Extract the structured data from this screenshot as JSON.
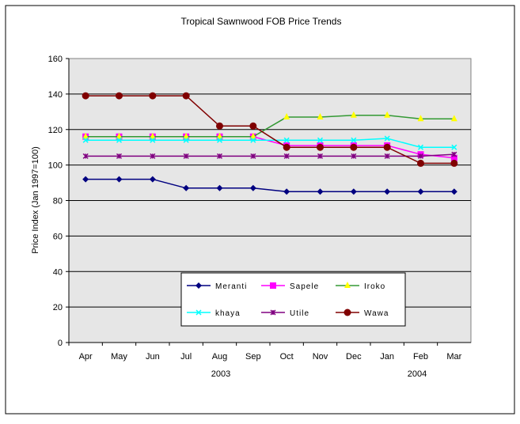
{
  "chart_data": {
    "type": "line",
    "title": "Tropical Sawnwood FOB Price Trends",
    "ylabel": "Price Index (Jan 1997=100)",
    "xlabel": "",
    "categories": [
      "Apr",
      "May",
      "Jun",
      "Jul",
      "Aug",
      "Sep",
      "Oct",
      "Nov",
      "Dec",
      "Jan",
      "Feb",
      "Mar"
    ],
    "year_labels": [
      "2003",
      "2004"
    ],
    "ylim": [
      0,
      160
    ],
    "yticks": [
      0,
      20,
      40,
      60,
      80,
      100,
      120,
      140,
      160
    ],
    "grid": true,
    "legend_placement": "bottom-center inside plot",
    "series": [
      {
        "name": "Meranti",
        "color": "#000080",
        "marker": "diamond",
        "values": [
          92,
          92,
          92,
          87,
          87,
          87,
          85,
          85,
          85,
          85,
          85,
          85
        ]
      },
      {
        "name": "Sapele",
        "color": "#ff00ff",
        "marker": "square",
        "values": [
          116,
          116,
          116,
          116,
          116,
          116,
          111,
          111,
          111,
          111,
          106,
          104
        ]
      },
      {
        "name": "Iroko",
        "color": "#339933",
        "marker_color": "#ffff00",
        "marker": "triangle",
        "values": [
          116,
          116,
          116,
          116,
          116,
          116,
          127,
          127,
          128,
          128,
          126,
          126
        ]
      },
      {
        "name": "khaya",
        "color": "#00ffff",
        "marker": "x",
        "values": [
          114,
          114,
          114,
          114,
          114,
          114,
          114,
          114,
          114,
          115,
          110,
          110
        ]
      },
      {
        "name": "Utile",
        "color": "#800080",
        "marker": "star",
        "values": [
          105,
          105,
          105,
          105,
          105,
          105,
          105,
          105,
          105,
          105,
          105,
          106
        ]
      },
      {
        "name": "Wawa",
        "color": "#800000",
        "marker": "circle",
        "values": [
          139,
          139,
          139,
          139,
          122,
          122,
          110,
          110,
          110,
          110,
          101,
          101
        ]
      }
    ]
  }
}
